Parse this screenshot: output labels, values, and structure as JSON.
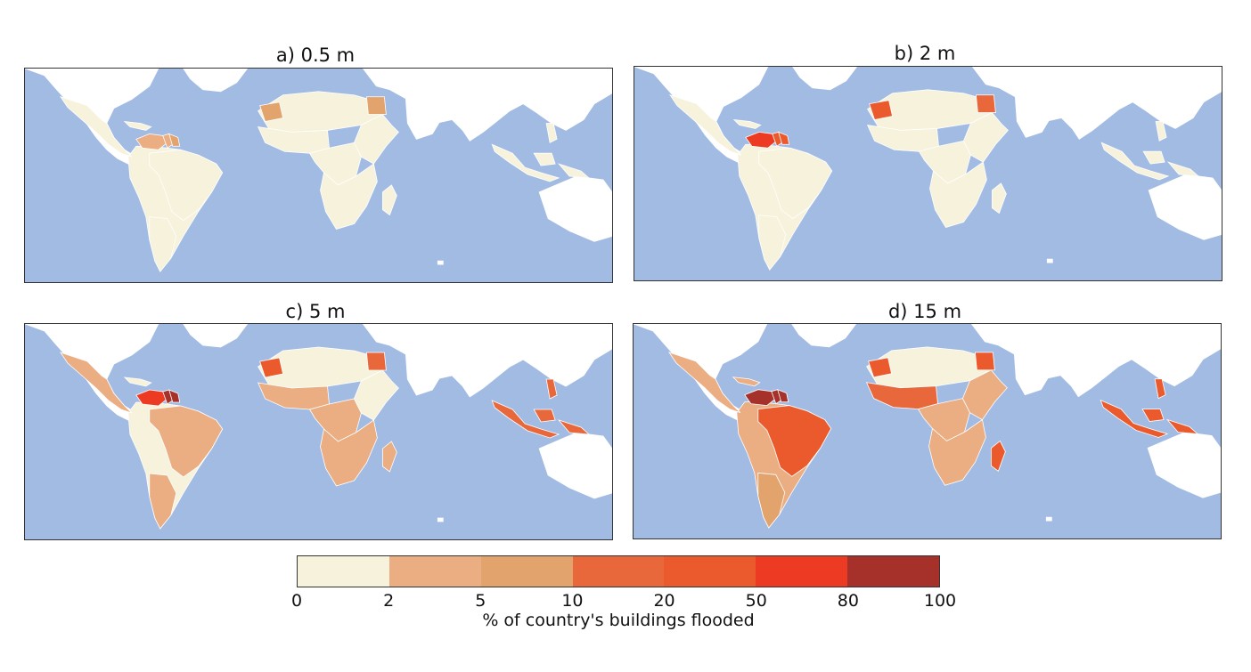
{
  "panels": [
    {
      "title": "a) 0.5 m",
      "classes": {
        "americas": 0,
        "venezuela": 1,
        "guyana": 1,
        "suriname": 2,
        "mauritania": 2,
        "egypt": 2,
        "westafrica": 0,
        "centralafrica": 0,
        "eastafrica": 0,
        "southafrica": 0,
        "madagascar": 0,
        "brazil": 0,
        "argentina": 0,
        "mexico": 0,
        "indonesia": 0
      }
    },
    {
      "title": "b) 2 m",
      "classes": {
        "americas": 0,
        "venezuela": 5,
        "guyana": 4,
        "suriname": 4,
        "mauritania": 4,
        "egypt": 3,
        "westafrica": 0,
        "centralafrica": 0,
        "eastafrica": 0,
        "southafrica": 0,
        "madagascar": 0,
        "brazil": 0,
        "argentina": 0,
        "mexico": 0,
        "indonesia": 0
      }
    },
    {
      "title": "c) 5 m",
      "classes": {
        "americas": 0,
        "venezuela": 5,
        "guyana": 6,
        "suriname": 6,
        "mauritania": 4,
        "egypt": 3,
        "westafrica": 1,
        "centralafrica": 1,
        "eastafrica": 0,
        "southafrica": 1,
        "madagascar": 1,
        "brazil": 1,
        "argentina": 1,
        "mexico": 1,
        "indonesia": 3
      }
    },
    {
      "title": "d) 15 m",
      "classes": {
        "americas": 1,
        "venezuela": 6,
        "guyana": 6,
        "suriname": 6,
        "mauritania": 4,
        "egypt": 4,
        "westafrica": 3,
        "centralafrica": 1,
        "eastafrica": 1,
        "southafrica": 1,
        "madagascar": 4,
        "brazil": 4,
        "argentina": 2,
        "mexico": 1,
        "indonesia": 4
      }
    }
  ],
  "colorbar": {
    "colors": [
      "#f6f2dc",
      "#ebad82",
      "#e2a36c",
      "#e8683c",
      "#ea5a2c",
      "#ed3b23",
      "#a6302a"
    ],
    "ticks": [
      "0",
      "2",
      "5",
      "10",
      "20",
      "50",
      "80",
      "100"
    ],
    "label": "% of country's buildings flooded"
  },
  "colors": {
    "ocean": "#a2bbe3",
    "land_nodata": "#ffffff"
  }
}
